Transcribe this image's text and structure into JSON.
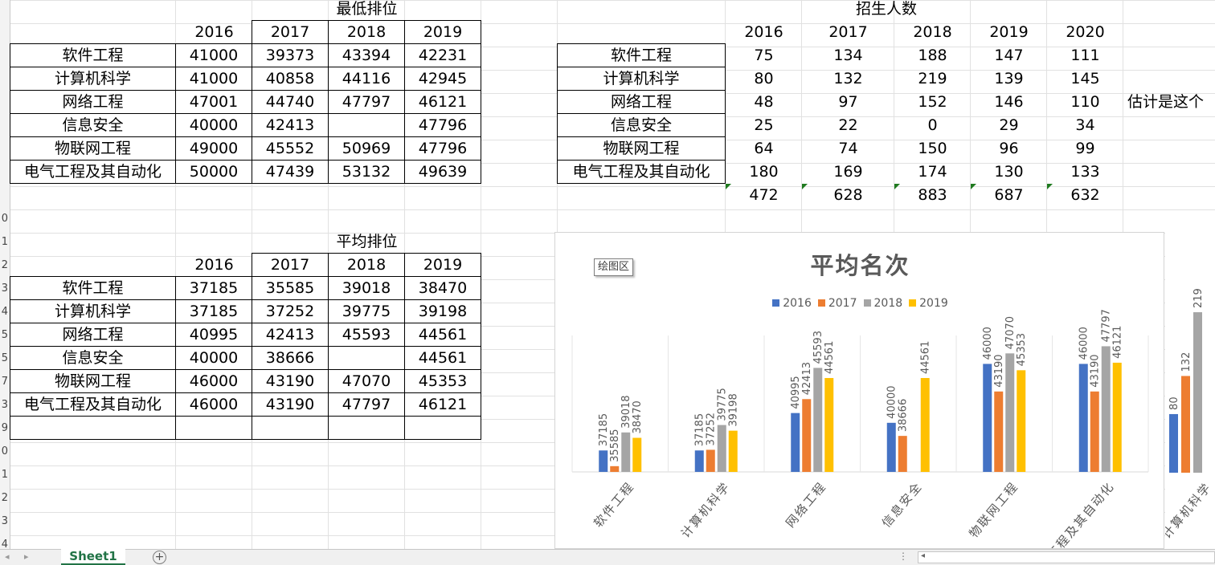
{
  "sheet": {
    "row_numbers": [
      "",
      "",
      "",
      "",
      "",
      "",
      "",
      "",
      "",
      "0",
      "1",
      "2",
      "3",
      "4",
      "5",
      "5",
      "7",
      "3",
      "9",
      "0",
      "1",
      "2",
      "3",
      "4"
    ]
  },
  "min_rank": {
    "title": "最低排位",
    "years": [
      "2016",
      "2017",
      "2018",
      "2019"
    ],
    "rows": [
      [
        "软件工程",
        "41000",
        "39373",
        "43394",
        "42231"
      ],
      [
        "计算机科学",
        "41000",
        "40858",
        "44116",
        "42945"
      ],
      [
        "网络工程",
        "47001",
        "44740",
        "47797",
        "46121"
      ],
      [
        "信息安全",
        "40000",
        "42413",
        "",
        "47796"
      ],
      [
        "物联网工程",
        "49000",
        "45552",
        "50969",
        "47796"
      ],
      [
        "电气工程及其自动化",
        "50000",
        "47439",
        "53132",
        "49639"
      ]
    ]
  },
  "avg_rank": {
    "title": "平均排位",
    "years": [
      "2016",
      "2017",
      "2018",
      "2019"
    ],
    "rows": [
      [
        "软件工程",
        "37185",
        "35585",
        "39018",
        "38470"
      ],
      [
        "计算机科学",
        "37185",
        "37252",
        "39775",
        "39198"
      ],
      [
        "网络工程",
        "40995",
        "42413",
        "45593",
        "44561"
      ],
      [
        "信息安全",
        "40000",
        "38666",
        "",
        "44561"
      ],
      [
        "物联网工程",
        "46000",
        "43190",
        "47070",
        "45353"
      ],
      [
        "电气工程及其自动化",
        "46000",
        "43190",
        "47797",
        "46121"
      ]
    ]
  },
  "enrollment": {
    "title": "招生人数",
    "years": [
      "2016",
      "2017",
      "2018",
      "2019",
      "2020"
    ],
    "rows": [
      [
        "软件工程",
        "75",
        "134",
        "188",
        "147",
        "111"
      ],
      [
        "计算机科学",
        "80",
        "132",
        "219",
        "139",
        "145"
      ],
      [
        "网络工程",
        "48",
        "97",
        "152",
        "146",
        "110"
      ],
      [
        "信息安全",
        "25",
        "22",
        "0",
        "29",
        "34"
      ],
      [
        "物联网工程",
        "64",
        "74",
        "150",
        "96",
        "99"
      ],
      [
        "电气工程及其自动化",
        "180",
        "169",
        "174",
        "130",
        "133"
      ]
    ],
    "totals": [
      "472",
      "628",
      "883",
      "687",
      "632"
    ],
    "note": "估计是这个"
  },
  "chart": {
    "tooltip": "绘图区",
    "colors": [
      "#4472c4",
      "#ed7d31",
      "#a5a5a5",
      "#ffc000"
    ]
  },
  "chart_data": [
    {
      "type": "bar",
      "title": "平均名次",
      "categories": [
        "软件工程",
        "计算机科学",
        "网络工程",
        "信息安全",
        "物联网工程",
        "电气工程及其自动化"
      ],
      "series": [
        {
          "name": "2016",
          "values": [
            37185,
            37185,
            40995,
            40000,
            46000,
            46000
          ]
        },
        {
          "name": "2017",
          "values": [
            35585,
            37252,
            42413,
            38666,
            43190,
            43190
          ]
        },
        {
          "name": "2018",
          "values": [
            39018,
            39775,
            45593,
            null,
            47070,
            47797
          ]
        },
        {
          "name": "2019",
          "values": [
            38470,
            39198,
            44561,
            44561,
            45353,
            46121
          ]
        }
      ],
      "ylim": [
        35000,
        52000
      ],
      "legend": "top",
      "grid": false
    },
    {
      "type": "bar",
      "categories": [
        "计算机科学"
      ],
      "series": [
        {
          "values": [
            80
          ]
        },
        {
          "values": [
            132
          ]
        },
        {
          "values": [
            219
          ]
        }
      ],
      "ylim": [
        0,
        230
      ],
      "legend": "none"
    }
  ],
  "tabs": {
    "sheet1": "Sheet1",
    "add": "+",
    "prev": "◂",
    "next": "▸",
    "more": "⋮",
    "scroll_left": "◂"
  }
}
